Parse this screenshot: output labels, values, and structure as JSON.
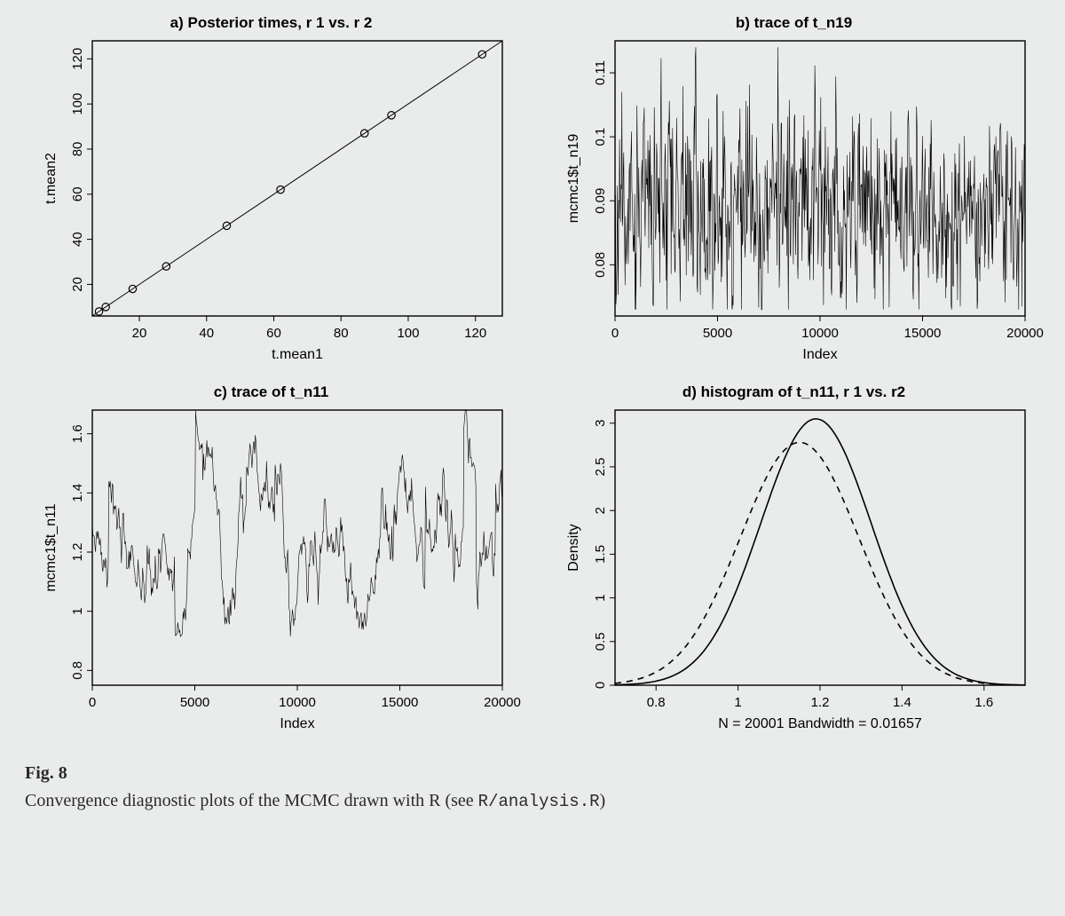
{
  "figure_label": "Fig. 8",
  "caption_text": "Convergence diagnostic plots of the MCMC drawn with R (see ",
  "caption_code": "R/analysis.R",
  "caption_tail": ")",
  "background_color": "#eaeceb",
  "panel_a": {
    "type": "scatter-with-line",
    "title": "a) Posterior times, r 1 vs. r 2",
    "xlabel": "t.mean1",
    "ylabel": "t.mean2",
    "xlim": [
      6,
      128
    ],
    "ylim": [
      6,
      128
    ],
    "xticks": [
      20,
      40,
      60,
      80,
      100,
      120
    ],
    "yticks": [
      20,
      40,
      60,
      80,
      100,
      120
    ],
    "line": [
      [
        6,
        6
      ],
      [
        128,
        128
      ]
    ],
    "points": [
      [
        8,
        8
      ],
      [
        10,
        10
      ],
      [
        18,
        18
      ],
      [
        28,
        28
      ],
      [
        46,
        46
      ],
      [
        62,
        62
      ],
      [
        87,
        87
      ],
      [
        95,
        95
      ],
      [
        122,
        122
      ]
    ],
    "marker_radius": 4.2,
    "marker_stroke": "#000",
    "line_color": "#000",
    "font_size_title": 17,
    "font_size_label": 16,
    "font_size_tick": 15
  },
  "panel_b": {
    "type": "trace",
    "title": "b) trace of t_n19",
    "xlabel": "Index",
    "ylabel": "mcmc1$t_n19",
    "xlim": [
      0,
      20000
    ],
    "ylim": [
      0.072,
      0.115
    ],
    "xticks": [
      0,
      5000,
      10000,
      15000,
      20000
    ],
    "yticks": [
      0.08,
      0.09,
      0.1,
      0.11
    ],
    "line_color": "#000",
    "trace_density": 900,
    "trace_mean": 0.089,
    "trace_sd": 0.0075,
    "seed": 11,
    "font_size_title": 17,
    "font_size_label": 16,
    "font_size_tick": 15
  },
  "panel_c": {
    "type": "trace",
    "title": "c) trace of t_n11",
    "xlabel": "Index",
    "ylabel": "mcmc1$t_n11",
    "xlim": [
      0,
      20000
    ],
    "ylim": [
      0.75,
      1.68
    ],
    "xticks": [
      0,
      5000,
      10000,
      15000,
      20000
    ],
    "yticks": [
      0.8,
      1.0,
      1.2,
      1.4,
      1.6
    ],
    "line_color": "#000",
    "trace_density": 620,
    "trace_mean": 1.18,
    "trace_sd": 0.15,
    "autocorr": 0.96,
    "seed": 7,
    "font_size_title": 17,
    "font_size_label": 16,
    "font_size_tick": 15
  },
  "panel_d": {
    "type": "density",
    "title": "d) histogram of t_n11, r 1 vs. r2",
    "xlabel": "N = 20001   Bandwidth = 0.01657",
    "ylabel": "Density",
    "xlim": [
      0.7,
      1.7
    ],
    "ylim": [
      0.0,
      3.15
    ],
    "xticks": [
      0.8,
      1.0,
      1.2,
      1.4,
      1.6
    ],
    "yticks": [
      0.0,
      0.5,
      1.0,
      1.5,
      2.0,
      2.5,
      3.0
    ],
    "curve1": {
      "mean": 1.19,
      "peak": 3.05,
      "sd": 0.135,
      "style": "solid"
    },
    "curve2": {
      "mean": 1.15,
      "peak": 2.78,
      "sd": 0.145,
      "style": "dashed"
    },
    "line_color": "#000",
    "dash_pattern": "7,6",
    "font_size_title": 17,
    "font_size_label": 16,
    "font_size_tick": 15
  }
}
